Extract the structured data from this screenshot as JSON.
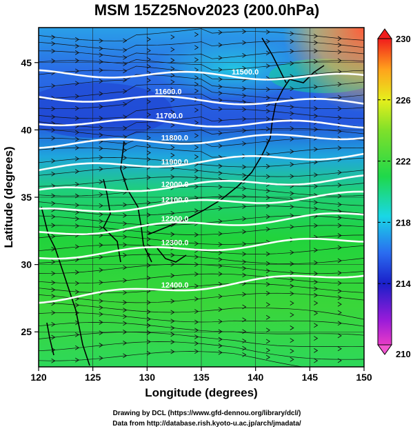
{
  "title": "MSM 15Z25Nov2023 (200.0hPa)",
  "xlabel": "Longitude (degrees)",
  "ylabel": "Latitude  (degrees)",
  "x_ticks": [
    120,
    125,
    130,
    135,
    140,
    145,
    150
  ],
  "y_ticks": [
    25,
    30,
    35,
    40,
    45
  ],
  "x_range": [
    120,
    150
  ],
  "y_range": [
    22.4,
    47.6
  ],
  "colorbar": {
    "ticks": [
      210,
      214,
      218,
      222,
      226,
      230
    ],
    "range": [
      210,
      230
    ]
  },
  "contours": [
    {
      "label": "11500.0",
      "lat_west": 44.2,
      "lat_east": 43.9,
      "label_lon": 137.8
    },
    {
      "label": "11600.0",
      "lat_west": 42.4,
      "lat_east": 42.0,
      "label_lon": 130.7
    },
    {
      "label": "11700.0",
      "lat_west": 40.6,
      "lat_east": 40.4,
      "label_lon": 130.8
    },
    {
      "label": "11800.0",
      "lat_west": 38.9,
      "lat_east": 39.6,
      "label_lon": 131.3
    },
    {
      "label": "11900.0",
      "lat_west": 37.1,
      "lat_east": 38.2,
      "label_lon": 131.3
    },
    {
      "label": "12000.0",
      "lat_west": 35.4,
      "lat_east": 36.4,
      "label_lon": 131.3
    },
    {
      "label": "12100.0",
      "lat_west": 33.9,
      "lat_east": 35.2,
      "label_lon": 131.3
    },
    {
      "label": "12200.0",
      "lat_west": 32.3,
      "lat_east": 33.7,
      "label_lon": 131.3
    },
    {
      "label": "12300.0",
      "lat_west": 30.6,
      "lat_east": 31.9,
      "label_lon": 131.3
    },
    {
      "label": "12400.0",
      "lat_west": 27.4,
      "lat_east": 29.4,
      "label_lon": 131.3
    }
  ],
  "credits": {
    "line1": "Drawing by DCL (https://www.gfd-dennou.org/library/dcl/)",
    "line2": "Data from http://database.rish.kyoto-u.ac.jp/arch/jmadata/"
  },
  "colors": {
    "cold": "#1a4fd6",
    "mid": "#1fcf3a",
    "warm": "#ff6a3a",
    "contour": "#ffffff",
    "land": "#000000"
  }
}
